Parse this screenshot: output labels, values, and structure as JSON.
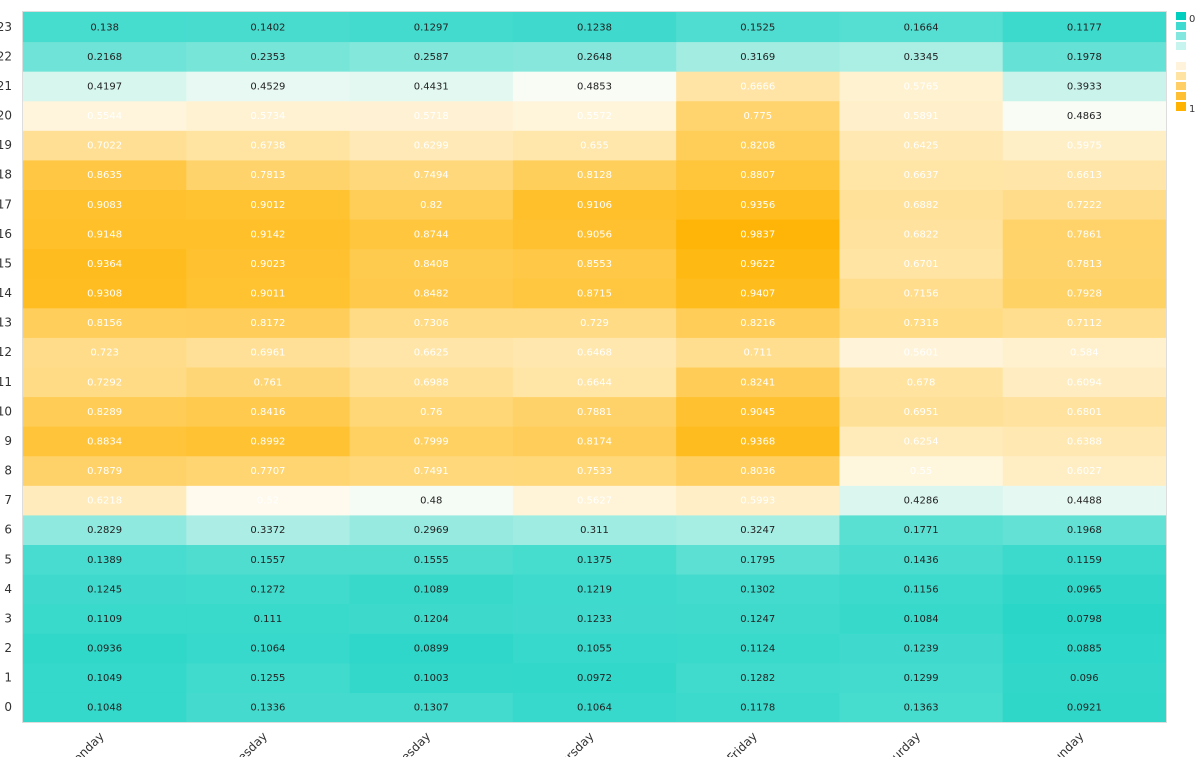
{
  "chart_data": {
    "type": "heatmap",
    "x_categories": [
      "Monday",
      "Tuesday",
      "Wednesday",
      "Thursday",
      "Friday",
      "Saturday",
      "Sunday"
    ],
    "y_categories": [
      "0",
      "1",
      "2",
      "3",
      "4",
      "5",
      "6",
      "7",
      "8",
      "9",
      "10",
      "11",
      "12",
      "13",
      "14",
      "15",
      "16",
      "17",
      "18",
      "19",
      "20",
      "21",
      "22",
      "23"
    ],
    "values_by_hour": {
      "0": [
        0.1048,
        0.1336,
        0.1307,
        0.1064,
        0.1178,
        0.1363,
        0.0921
      ],
      "1": [
        0.1049,
        0.1255,
        0.1003,
        0.0972,
        0.1282,
        0.1299,
        0.096
      ],
      "2": [
        0.0936,
        0.1064,
        0.0899,
        0.1055,
        0.1124,
        0.1239,
        0.0885
      ],
      "3": [
        0.1109,
        0.111,
        0.1204,
        0.1233,
        0.1247,
        0.1084,
        0.0798
      ],
      "4": [
        0.1245,
        0.1272,
        0.1089,
        0.1219,
        0.1302,
        0.1156,
        0.0965
      ],
      "5": [
        0.1389,
        0.1557,
        0.1555,
        0.1375,
        0.1795,
        0.1436,
        0.1159
      ],
      "6": [
        0.2829,
        0.3372,
        0.2969,
        0.311,
        0.3247,
        0.1771,
        0.1968
      ],
      "7": [
        0.6218,
        0.52,
        0.48,
        0.5627,
        0.5993,
        0.4286,
        0.4488
      ],
      "8": [
        0.7879,
        0.7707,
        0.7491,
        0.7533,
        0.8036,
        0.55,
        0.6027
      ],
      "9": [
        0.8834,
        0.8992,
        0.7999,
        0.8174,
        0.9368,
        0.6254,
        0.6388
      ],
      "10": [
        0.8289,
        0.8416,
        0.76,
        0.7881,
        0.9045,
        0.6951,
        0.6801
      ],
      "11": [
        0.7292,
        0.761,
        0.6988,
        0.6644,
        0.8241,
        0.678,
        0.6094
      ],
      "12": [
        0.723,
        0.6961,
        0.6625,
        0.6468,
        0.711,
        0.5601,
        0.584
      ],
      "13": [
        0.8156,
        0.8172,
        0.7306,
        0.729,
        0.8216,
        0.7318,
        0.7112
      ],
      "14": [
        0.9308,
        0.9011,
        0.8482,
        0.8715,
        0.9407,
        0.7156,
        0.7928
      ],
      "15": [
        0.9364,
        0.9023,
        0.8408,
        0.8553,
        0.9622,
        0.6701,
        0.7813
      ],
      "16": [
        0.9148,
        0.9142,
        0.8744,
        0.9056,
        0.9837,
        0.6822,
        0.7861
      ],
      "17": [
        0.9083,
        0.9012,
        0.82,
        0.9106,
        0.9356,
        0.6882,
        0.7222
      ],
      "18": [
        0.8635,
        0.7813,
        0.7494,
        0.8128,
        0.8807,
        0.6637,
        0.6613
      ],
      "19": [
        0.7022,
        0.6738,
        0.6299,
        0.655,
        0.8208,
        0.6425,
        0.5975
      ],
      "20": [
        0.5544,
        0.5734,
        0.5718,
        0.5572,
        0.775,
        0.5891,
        0.4863
      ],
      "21": [
        0.4197,
        0.4529,
        0.4431,
        0.4853,
        0.6666,
        0.5765,
        0.3933
      ],
      "22": [
        0.2168,
        0.2353,
        0.2587,
        0.2648,
        0.3169,
        0.3345,
        0.1978
      ],
      "23": [
        0.138,
        0.1402,
        0.1297,
        0.1238,
        0.1525,
        0.1664,
        0.1177
      ]
    },
    "color_scale": {
      "domain": [
        0,
        0.5,
        1
      ],
      "colors": [
        "#00cfbf",
        "#fffdf7",
        "#ffb300"
      ]
    },
    "legend": {
      "min_label": "0",
      "max_label": "1",
      "position": "top-right"
    },
    "grid": false
  }
}
